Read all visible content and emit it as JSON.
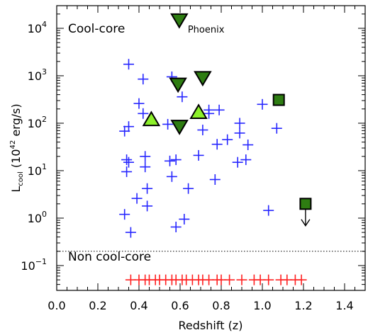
{
  "chart_data": {
    "type": "scatter",
    "xlabel": "Redshift (z)",
    "ylabel": {
      "main": "L",
      "sub": "cool",
      "rest": " (10",
      "sup": "42",
      "unit": " erg/s)"
    },
    "xlim": [
      0.0,
      1.5
    ],
    "ylim": [
      0.03,
      30000
    ],
    "yscale": "log",
    "xticks": [
      {
        "value": 0.0,
        "label": "0.0"
      },
      {
        "value": 0.2,
        "label": "0.2"
      },
      {
        "value": 0.4,
        "label": "0.4"
      },
      {
        "value": 0.6,
        "label": "0.6"
      },
      {
        "value": 0.8,
        "label": "0.8"
      },
      {
        "value": 1.0,
        "label": "1.0"
      },
      {
        "value": 1.2,
        "label": "1.2"
      },
      {
        "value": 1.4,
        "label": "1.4"
      }
    ],
    "yticks": [
      {
        "value": 0.1,
        "base": "10",
        "exp": "−1"
      },
      {
        "value": 1,
        "base": "10",
        "exp": "0"
      },
      {
        "value": 10,
        "base": "10",
        "exp": "1"
      },
      {
        "value": 100,
        "base": "10",
        "exp": "2"
      },
      {
        "value": 1000,
        "base": "10",
        "exp": "3"
      },
      {
        "value": 10000,
        "base": "10",
        "exp": "4"
      }
    ],
    "threshold_line": 0.2,
    "region_labels": {
      "cool_core": "Cool-core",
      "non_cool_core": "Non cool-core"
    },
    "phoenix_label": "Phoenix",
    "colors": {
      "cool_core_plus": "#2626ff",
      "non_cool_core_plus": "#ff2020",
      "dark_green": "#2e7d12",
      "light_green": "#8cf02a"
    },
    "series": [
      {
        "marker": "plus",
        "color": "#2626ff",
        "points": [
          {
            "x": 0.35,
            "y": 1750
          },
          {
            "x": 0.42,
            "y": 850
          },
          {
            "x": 0.56,
            "y": 950
          },
          {
            "x": 0.61,
            "y": 360
          },
          {
            "x": 0.4,
            "y": 260
          },
          {
            "x": 0.42,
            "y": 160
          },
          {
            "x": 0.74,
            "y": 190
          },
          {
            "x": 0.74,
            "y": 160
          },
          {
            "x": 0.79,
            "y": 190
          },
          {
            "x": 0.54,
            "y": 95
          },
          {
            "x": 0.71,
            "y": 72
          },
          {
            "x": 0.83,
            "y": 45
          },
          {
            "x": 0.89,
            "y": 100
          },
          {
            "x": 0.89,
            "y": 62
          },
          {
            "x": 1.0,
            "y": 250
          },
          {
            "x": 1.07,
            "y": 78
          },
          {
            "x": 0.33,
            "y": 68
          },
          {
            "x": 0.35,
            "y": 85
          },
          {
            "x": 0.78,
            "y": 36
          },
          {
            "x": 0.93,
            "y": 35
          },
          {
            "x": 0.69,
            "y": 21
          },
          {
            "x": 0.55,
            "y": 16
          },
          {
            "x": 0.34,
            "y": 17
          },
          {
            "x": 0.35,
            "y": 15
          },
          {
            "x": 0.43,
            "y": 20
          },
          {
            "x": 0.43,
            "y": 12
          },
          {
            "x": 0.58,
            "y": 17
          },
          {
            "x": 0.88,
            "y": 15
          },
          {
            "x": 0.92,
            "y": 17
          },
          {
            "x": 0.34,
            "y": 9.5
          },
          {
            "x": 0.56,
            "y": 7.5
          },
          {
            "x": 0.77,
            "y": 6.5
          },
          {
            "x": 0.44,
            "y": 4.2
          },
          {
            "x": 0.64,
            "y": 4.2
          },
          {
            "x": 0.39,
            "y": 2.6
          },
          {
            "x": 0.44,
            "y": 1.8
          },
          {
            "x": 0.33,
            "y": 1.2
          },
          {
            "x": 0.36,
            "y": 0.5
          },
          {
            "x": 0.58,
            "y": 0.65
          },
          {
            "x": 0.62,
            "y": 0.95
          },
          {
            "x": 1.03,
            "y": 1.45
          }
        ]
      },
      {
        "marker": "plus",
        "color": "#ff2020",
        "points": [
          {
            "x": 0.36,
            "y": 0.05
          },
          {
            "x": 0.4,
            "y": 0.05
          },
          {
            "x": 0.43,
            "y": 0.05
          },
          {
            "x": 0.45,
            "y": 0.05
          },
          {
            "x": 0.48,
            "y": 0.05
          },
          {
            "x": 0.5,
            "y": 0.05
          },
          {
            "x": 0.53,
            "y": 0.05
          },
          {
            "x": 0.56,
            "y": 0.05
          },
          {
            "x": 0.58,
            "y": 0.05
          },
          {
            "x": 0.61,
            "y": 0.05
          },
          {
            "x": 0.63,
            "y": 0.05
          },
          {
            "x": 0.66,
            "y": 0.05
          },
          {
            "x": 0.69,
            "y": 0.05
          },
          {
            "x": 0.71,
            "y": 0.05
          },
          {
            "x": 0.74,
            "y": 0.05
          },
          {
            "x": 0.78,
            "y": 0.05
          },
          {
            "x": 0.8,
            "y": 0.05
          },
          {
            "x": 0.84,
            "y": 0.05
          },
          {
            "x": 0.9,
            "y": 0.05
          },
          {
            "x": 0.96,
            "y": 0.05
          },
          {
            "x": 0.99,
            "y": 0.05
          },
          {
            "x": 1.03,
            "y": 0.05
          },
          {
            "x": 1.09,
            "y": 0.05
          },
          {
            "x": 1.12,
            "y": 0.05
          },
          {
            "x": 1.16,
            "y": 0.05
          },
          {
            "x": 1.19,
            "y": 0.05
          }
        ]
      },
      {
        "marker": "triangle-down",
        "color": "#2e7d12",
        "points": [
          {
            "x": 0.596,
            "y": 14000
          },
          {
            "x": 0.59,
            "y": 620
          },
          {
            "x": 0.71,
            "y": 850
          },
          {
            "x": 0.597,
            "y": 80
          }
        ]
      },
      {
        "marker": "triangle-up",
        "color": "#8cf02a",
        "points": [
          {
            "x": 0.46,
            "y": 120
          },
          {
            "x": 0.69,
            "y": 170
          }
        ]
      },
      {
        "marker": "square",
        "color": "#2e7d12",
        "points": [
          {
            "x": 1.08,
            "y": 310
          }
        ]
      },
      {
        "marker": "square-upper-limit",
        "color": "#2e7d12",
        "points": [
          {
            "x": 1.21,
            "y": 2.0
          }
        ]
      }
    ]
  }
}
